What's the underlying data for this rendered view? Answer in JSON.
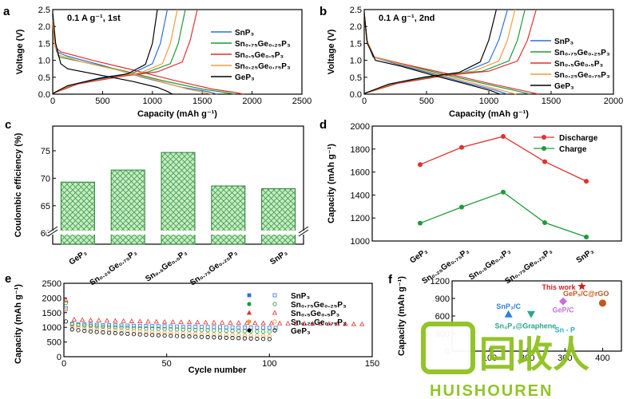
{
  "colors": {
    "SnP3": "#2f6fd6",
    "Sn075": "#1f9a3a",
    "Sn05": "#e03030",
    "Sn025": "#f39c3c",
    "GeP3": "#000000",
    "bar_fill": "#c9ebc4",
    "bar_hatch": "#3aa049",
    "watermark": "#8ec11f"
  },
  "watermark": {
    "cn": "回收人",
    "en": "HUISHOUREN"
  },
  "chart_data": [
    {
      "id": "a",
      "type": "line",
      "panel_label": "a",
      "condition": "0.1 A g⁻¹, 1st",
      "xlabel": "Capacity (mAh g⁻¹)",
      "ylabel": "Voltage (V)",
      "xlim": [
        0,
        2500
      ],
      "ylim": [
        0,
        2.5
      ],
      "xticks": [
        0,
        500,
        1000,
        1500,
        2000,
        2500
      ],
      "yticks": [
        0.0,
        0.5,
        1.0,
        1.5,
        2.0,
        2.5
      ],
      "ytick_labels": [
        "0.0",
        "0.5",
        "1.0",
        "1.5",
        "2.0",
        "2.5"
      ],
      "legend": [
        "SnP₃",
        "Sn₀.₇₅Ge₀.₂₅P₃",
        "Sn₀.₅Ge₀.₅P₃",
        "Sn₀.₂₅Ge₀.₇₅P₃",
        "GeP₃"
      ],
      "series": [
        {
          "name": "SnP₃",
          "color_key": "SnP3",
          "discharge": [
            [
              0,
              2.3
            ],
            [
              15,
              1.6
            ],
            [
              40,
              1.25
            ],
            [
              150,
              1.12
            ],
            [
              500,
              0.85
            ],
            [
              900,
              0.5
            ],
            [
              1300,
              0.2
            ],
            [
              1550,
              0.08
            ],
            [
              1650,
              0.0
            ]
          ],
          "charge": [
            [
              0,
              0.02
            ],
            [
              150,
              0.25
            ],
            [
              500,
              0.5
            ],
            [
              800,
              0.62
            ],
            [
              1000,
              0.9
            ],
            [
              1080,
              1.5
            ],
            [
              1150,
              2.5
            ]
          ]
        },
        {
          "name": "Sn₀.₇₅Ge₀.₂₅P₃",
          "color_key": "Sn075",
          "discharge": [
            [
              0,
              2.2
            ],
            [
              20,
              1.5
            ],
            [
              60,
              1.1
            ],
            [
              300,
              0.95
            ],
            [
              700,
              0.7
            ],
            [
              1100,
              0.4
            ],
            [
              1500,
              0.15
            ],
            [
              1730,
              0.05
            ],
            [
              1830,
              0.0
            ]
          ],
          "charge": [
            [
              0,
              0.02
            ],
            [
              200,
              0.28
            ],
            [
              600,
              0.52
            ],
            [
              950,
              0.65
            ],
            [
              1180,
              0.9
            ],
            [
              1260,
              1.5
            ],
            [
              1330,
              2.5
            ]
          ]
        },
        {
          "name": "Sn₀.₅Ge₀.₅P₃",
          "color_key": "Sn05",
          "discharge": [
            [
              0,
              2.1
            ],
            [
              25,
              1.4
            ],
            [
              80,
              1.25
            ],
            [
              400,
              1.0
            ],
            [
              800,
              0.72
            ],
            [
              1200,
              0.42
            ],
            [
              1600,
              0.15
            ],
            [
              1830,
              0.05
            ],
            [
              1920,
              0.0
            ]
          ],
          "charge": [
            [
              0,
              0.02
            ],
            [
              250,
              0.3
            ],
            [
              700,
              0.53
            ],
            [
              1050,
              0.66
            ],
            [
              1300,
              0.95
            ],
            [
              1380,
              1.6
            ],
            [
              1450,
              2.5
            ]
          ]
        },
        {
          "name": "Sn₀.₂₅Ge₀.₇₅P₃",
          "color_key": "Sn025",
          "discharge": [
            [
              0,
              2.2
            ],
            [
              20,
              1.5
            ],
            [
              60,
              1.15
            ],
            [
              300,
              0.95
            ],
            [
              700,
              0.68
            ],
            [
              1050,
              0.4
            ],
            [
              1350,
              0.15
            ],
            [
              1520,
              0.05
            ],
            [
              1600,
              0.0
            ]
          ],
          "charge": [
            [
              0,
              0.02
            ],
            [
              180,
              0.27
            ],
            [
              550,
              0.5
            ],
            [
              880,
              0.63
            ],
            [
              1100,
              0.9
            ],
            [
              1180,
              1.5
            ],
            [
              1250,
              2.5
            ]
          ]
        },
        {
          "name": "GeP₃",
          "color_key": "GeP3",
          "discharge": [
            [
              0,
              2.4
            ],
            [
              30,
              1.5
            ],
            [
              80,
              0.9
            ],
            [
              150,
              0.75
            ],
            [
              500,
              0.55
            ],
            [
              800,
              0.38
            ],
            [
              1050,
              0.2
            ],
            [
              1150,
              0.08
            ],
            [
              1200,
              0.0
            ]
          ],
          "charge": [
            [
              0,
              0.02
            ],
            [
              150,
              0.25
            ],
            [
              450,
              0.45
            ],
            [
              750,
              0.6
            ],
            [
              930,
              0.88
            ],
            [
              1000,
              1.5
            ],
            [
              1050,
              2.5
            ]
          ]
        }
      ]
    },
    {
      "id": "b",
      "type": "line",
      "panel_label": "b",
      "condition": "0.1 A g⁻¹, 2nd",
      "xlabel": "Capacity (mAh g⁻¹)",
      "ylabel": "Voltage (V)",
      "xlim": [
        0,
        2000
      ],
      "ylim": [
        0,
        2.5
      ],
      "xticks": [
        0,
        500,
        1000,
        1500,
        2000
      ],
      "yticks": [
        0.0,
        0.5,
        1.0,
        1.5,
        2.0,
        2.5
      ],
      "ytick_labels": [
        "0.0",
        "0.5",
        "1.0",
        "1.5",
        "2.0",
        "2.5"
      ],
      "legend": [
        "SnP₃",
        "Sn₀.₇₅Ge₀.₂₅P₃",
        "Sn₀.₅Ge₀.₅P₃",
        "Sn₀.₂₅Ge₀.₇₅P₃",
        "GeP₃"
      ],
      "series": [
        {
          "name": "SnP₃",
          "color_key": "SnP3",
          "discharge": [
            [
              0,
              2.4
            ],
            [
              20,
              1.6
            ],
            [
              70,
              1.1
            ],
            [
              250,
              0.9
            ],
            [
              500,
              0.65
            ],
            [
              800,
              0.35
            ],
            [
              1050,
              0.12
            ],
            [
              1150,
              0.0
            ]
          ],
          "charge": [
            [
              0,
              0.02
            ],
            [
              200,
              0.3
            ],
            [
              500,
              0.52
            ],
            [
              800,
              0.65
            ],
            [
              1000,
              0.95
            ],
            [
              1080,
              1.6
            ],
            [
              1150,
              2.5
            ]
          ]
        },
        {
          "name": "Sn₀.₇₅Ge₀.₂₅P₃",
          "color_key": "Sn075",
          "discharge": [
            [
              0,
              2.4
            ],
            [
              20,
              1.6
            ],
            [
              80,
              1.1
            ],
            [
              300,
              0.9
            ],
            [
              600,
              0.62
            ],
            [
              950,
              0.32
            ],
            [
              1220,
              0.1
            ],
            [
              1330,
              0.0
            ]
          ],
          "charge": [
            [
              0,
              0.02
            ],
            [
              250,
              0.32
            ],
            [
              600,
              0.55
            ],
            [
              950,
              0.68
            ],
            [
              1160,
              0.98
            ],
            [
              1230,
              1.6
            ],
            [
              1290,
              2.5
            ]
          ]
        },
        {
          "name": "Sn₀.₅Ge₀.₅P₃",
          "color_key": "Sn05",
          "discharge": [
            [
              0,
              2.4
            ],
            [
              20,
              1.6
            ],
            [
              80,
              1.1
            ],
            [
              300,
              0.9
            ],
            [
              650,
              0.62
            ],
            [
              1000,
              0.32
            ],
            [
              1280,
              0.1
            ],
            [
              1400,
              0.0
            ]
          ],
          "charge": [
            [
              0,
              0.02
            ],
            [
              270,
              0.32
            ],
            [
              650,
              0.55
            ],
            [
              1000,
              0.68
            ],
            [
              1230,
              0.98
            ],
            [
              1310,
              1.6
            ],
            [
              1380,
              2.5
            ]
          ]
        },
        {
          "name": "Sn₀.₂₅Ge₀.₇₅P₃",
          "color_key": "Sn025",
          "discharge": [
            [
              0,
              2.4
            ],
            [
              20,
              1.6
            ],
            [
              75,
              1.1
            ],
            [
              280,
              0.9
            ],
            [
              560,
              0.62
            ],
            [
              880,
              0.32
            ],
            [
              1120,
              0.1
            ],
            [
              1220,
              0.0
            ]
          ],
          "charge": [
            [
              0,
              0.02
            ],
            [
              230,
              0.32
            ],
            [
              560,
              0.55
            ],
            [
              880,
              0.68
            ],
            [
              1080,
              0.98
            ],
            [
              1150,
              1.6
            ],
            [
              1210,
              2.5
            ]
          ]
        },
        {
          "name": "GeP₃",
          "color_key": "GeP3",
          "discharge": [
            [
              0,
              2.4
            ],
            [
              25,
              1.5
            ],
            [
              90,
              1.0
            ],
            [
              300,
              0.82
            ],
            [
              560,
              0.55
            ],
            [
              820,
              0.3
            ],
            [
              1020,
              0.1
            ],
            [
              1090,
              0.0
            ]
          ],
          "charge": [
            [
              0,
              0.02
            ],
            [
              200,
              0.3
            ],
            [
              480,
              0.5
            ],
            [
              760,
              0.64
            ],
            [
              930,
              0.95
            ],
            [
              1000,
              1.6
            ],
            [
              1060,
              2.5
            ]
          ]
        }
      ]
    },
    {
      "id": "c",
      "type": "bar",
      "panel_label": "c",
      "ylabel": "Coulombic efficiency (%)",
      "categories": [
        "GeP₃",
        "Sn₀.₂₅Ge₀.₇₅P₃",
        "Sn₀.₅Ge₀.₅P₃",
        "Sn₀.₇₅Ge₀.₂₅P₃",
        "SnP₃"
      ],
      "values": [
        69.3,
        71.5,
        74.7,
        68.6,
        68.1
      ],
      "ylim": [
        60,
        80
      ],
      "yticks": [
        60,
        65,
        70,
        75
      ],
      "axis_break": true
    },
    {
      "id": "d",
      "type": "line",
      "panel_label": "d",
      "ylabel": "Capacity (mAh g⁻¹)",
      "categories": [
        "GeP₃",
        "Sn₀.₂₅Ge₀.₇₅P₃",
        "Sn₀.₅Ge₀.₅P₃",
        "Sn₀.₇₅Ge₀.₂₅P₃",
        "SnP₃"
      ],
      "ylim": [
        1000,
        2000
      ],
      "yticks": [
        1000,
        1200,
        1400,
        1600,
        1800,
        2000
      ],
      "series": [
        {
          "name": "Discharge",
          "color_key": "Sn05",
          "values": [
            1665,
            1815,
            1910,
            1690,
            1520
          ]
        },
        {
          "name": "Charge",
          "color_key": "Sn075",
          "values": [
            1155,
            1295,
            1425,
            1160,
            1035
          ]
        }
      ]
    },
    {
      "id": "e",
      "type": "scatter",
      "panel_label": "e",
      "xlabel": "Cycle number",
      "ylabel": "Capacity (mAh g⁻¹)",
      "xlim": [
        0,
        150
      ],
      "ylim": [
        0,
        2500
      ],
      "xticks": [
        0,
        50,
        100,
        150
      ],
      "yticks": [
        0,
        500,
        1000,
        1500,
        2000,
        2500
      ],
      "legend": [
        "SnP₃",
        "Sn₀.₇₅Ge₀.₂₅P₃",
        "Sn₀.₅Ge₀.₅P₃",
        "Sn₀.₂₅Ge₀.₇₅P₃",
        "GeP₃"
      ],
      "series": [
        {
          "name": "SnP₃",
          "color_key": "SnP3",
          "cycles": 105,
          "first_discharge": 1650,
          "start": 1150,
          "end": 980
        },
        {
          "name": "Sn₀.₇₅Ge₀.₂₅P₃",
          "color_key": "Sn075",
          "cycles": 100,
          "first_discharge": 1830,
          "start": 1150,
          "end": 850
        },
        {
          "name": "Sn₀.₅Ge₀.₅P₃",
          "color_key": "Sn05",
          "cycles": 145,
          "first_discharge": 1920,
          "start": 1300,
          "end": 1110
        },
        {
          "name": "Sn₀.₂₅Ge₀.₇₅P₃",
          "color_key": "Sn025",
          "cycles": 100,
          "first_discharge": 1600,
          "start": 1100,
          "end": 700
        },
        {
          "name": "GeP₃",
          "color_key": "GeP3",
          "cycles": 100,
          "first_discharge": 1200,
          "start": 1000,
          "end": 600
        }
      ]
    },
    {
      "id": "f",
      "type": "scatter",
      "panel_label": "f",
      "ylabel": "Capacity (mAh g⁻¹)",
      "xlim": [
        0,
        450
      ],
      "ylim": [
        0,
        1200
      ],
      "xticks": [
        100,
        200,
        300,
        400
      ],
      "yticks": [
        0,
        300,
        600,
        900,
        1200
      ],
      "points": [
        {
          "label": "This work",
          "x": 345,
          "y": 1105,
          "marker": "star",
          "color": "#cc2222"
        },
        {
          "label": "SnP₃/C",
          "x": 150,
          "y": 630,
          "marker": "triangle",
          "color": "#2f7fd6"
        },
        {
          "label": "",
          "x": 210,
          "y": 630,
          "marker": "triangle-down",
          "color": "#2aa58a"
        },
        {
          "label": "GeP₅/C@rGO",
          "x": 400,
          "y": 820,
          "marker": "circle",
          "color": "#c0581e"
        },
        {
          "label": "GeP/C",
          "x": 295,
          "y": 850,
          "marker": "diamond",
          "color": "#c56fe0"
        },
        {
          "label": "Sn₄P₃@Graphene",
          "x": 195,
          "y": 390,
          "marker": "none",
          "color": "#2aa58a"
        },
        {
          "label": "Sn - P",
          "x": 300,
          "y": 320,
          "marker": "none",
          "color": "#2bb0c9"
        }
      ]
    }
  ]
}
